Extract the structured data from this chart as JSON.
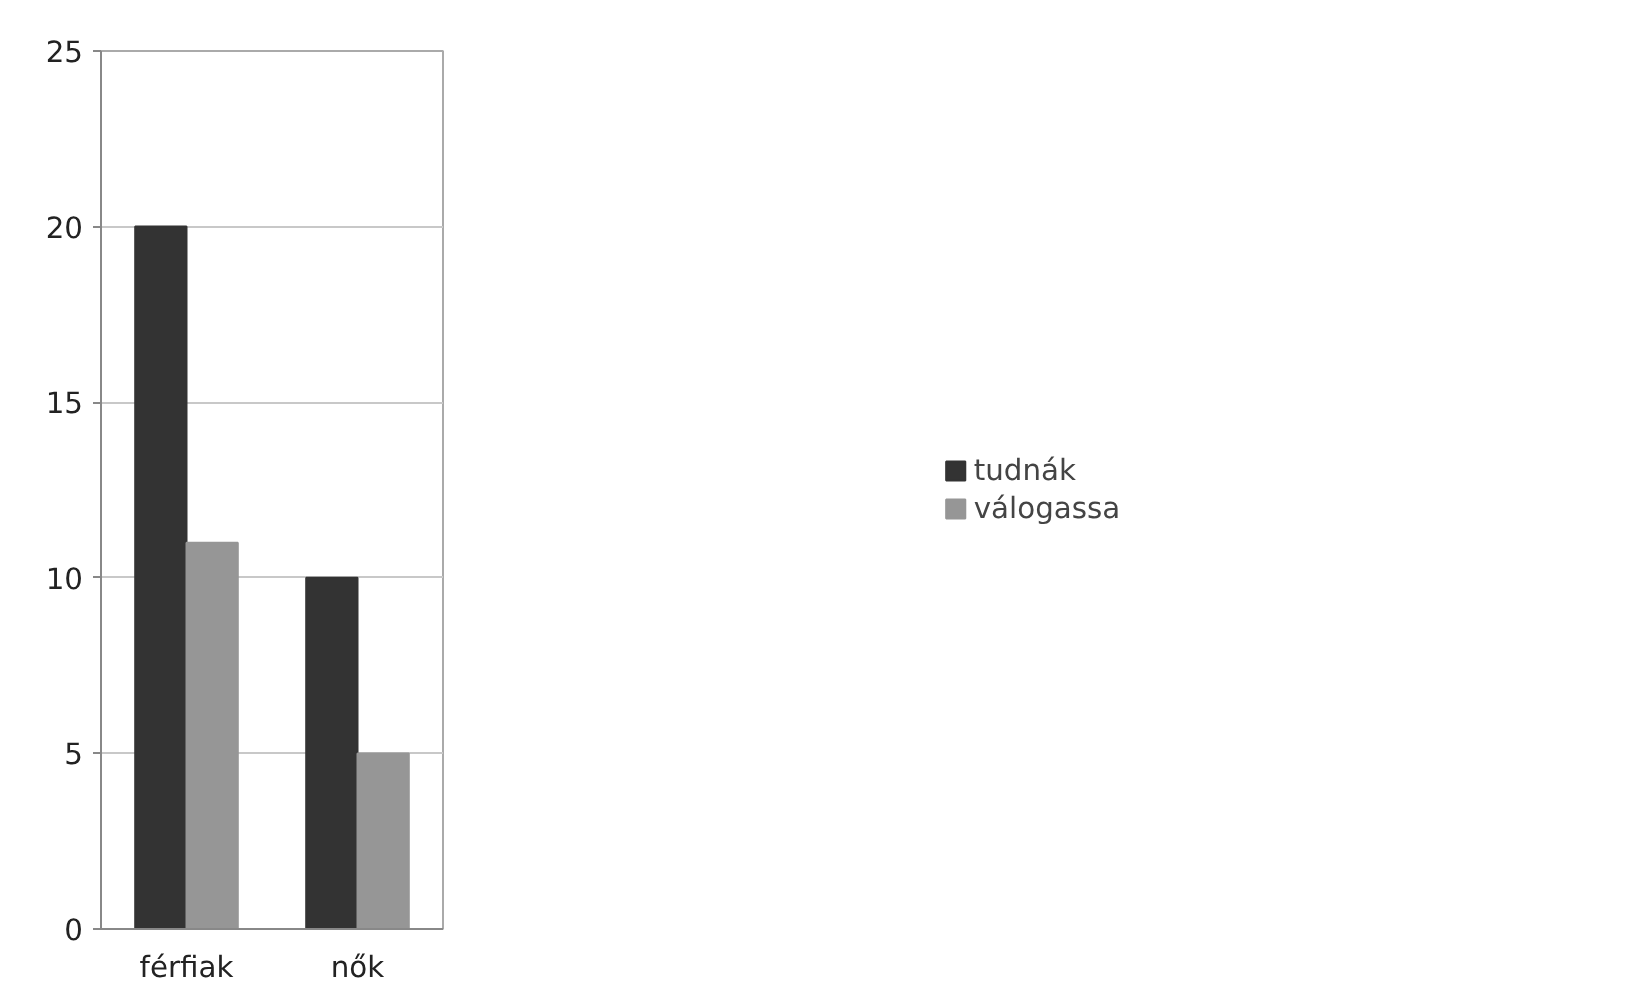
{
  "chart_data": {
    "type": "bar",
    "categories": [
      "férfiak",
      "nők"
    ],
    "series": [
      {
        "name": "tudnák",
        "color": "#333333",
        "values": [
          20,
          10
        ]
      },
      {
        "name": "válogassa",
        "color": "#969696",
        "values": [
          11,
          5
        ]
      }
    ],
    "ylim": [
      0,
      25
    ],
    "yticks": [
      0,
      5,
      10,
      15,
      20,
      25
    ],
    "grid": "y",
    "legend": "right"
  }
}
